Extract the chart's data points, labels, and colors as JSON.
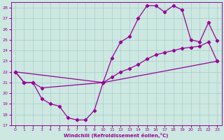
{
  "xlabel": "Windchill (Refroidissement éolien,°C)",
  "bg_color": "#cce8e0",
  "grid_color": "#aacccc",
  "line_color": "#990099",
  "xlim": [
    -0.5,
    23.5
  ],
  "ylim": [
    17,
    28.5
  ],
  "yticks": [
    17,
    18,
    19,
    20,
    21,
    22,
    23,
    24,
    25,
    26,
    27,
    28
  ],
  "xticks": [
    0,
    1,
    2,
    3,
    4,
    5,
    6,
    7,
    8,
    9,
    10,
    11,
    12,
    13,
    14,
    15,
    16,
    17,
    18,
    19,
    20,
    21,
    22,
    23
  ],
  "line1_x": [
    0,
    1,
    2,
    3,
    4,
    5,
    6,
    7,
    8,
    9,
    10,
    23
  ],
  "line1_y": [
    22,
    21,
    21,
    19.5,
    19,
    18.8,
    17.7,
    17.5,
    17.5,
    18.4,
    21,
    23
  ],
  "line2_x": [
    0,
    1,
    2,
    3,
    10,
    11,
    12,
    13,
    14,
    15,
    16,
    17,
    18,
    19,
    20,
    21,
    22,
    23
  ],
  "line2_y": [
    22,
    21,
    21,
    20.5,
    21,
    23.3,
    24.8,
    25.3,
    27.0,
    28.2,
    28.2,
    27.6,
    28.2,
    27.8,
    25.0,
    24.8,
    26.6,
    24.9
  ],
  "line3_x": [
    0,
    10,
    23
  ],
  "line3_y": [
    22,
    21,
    23
  ],
  "line3_seg_x": [
    10,
    11,
    12,
    13,
    14,
    15,
    16,
    17,
    18,
    19,
    20,
    21,
    22,
    23
  ],
  "line3_seg_y": [
    21,
    21.5,
    22.0,
    22.3,
    22.7,
    23.2,
    23.6,
    23.8,
    24.0,
    24.2,
    24.3,
    24.4,
    24.8,
    23.0
  ]
}
